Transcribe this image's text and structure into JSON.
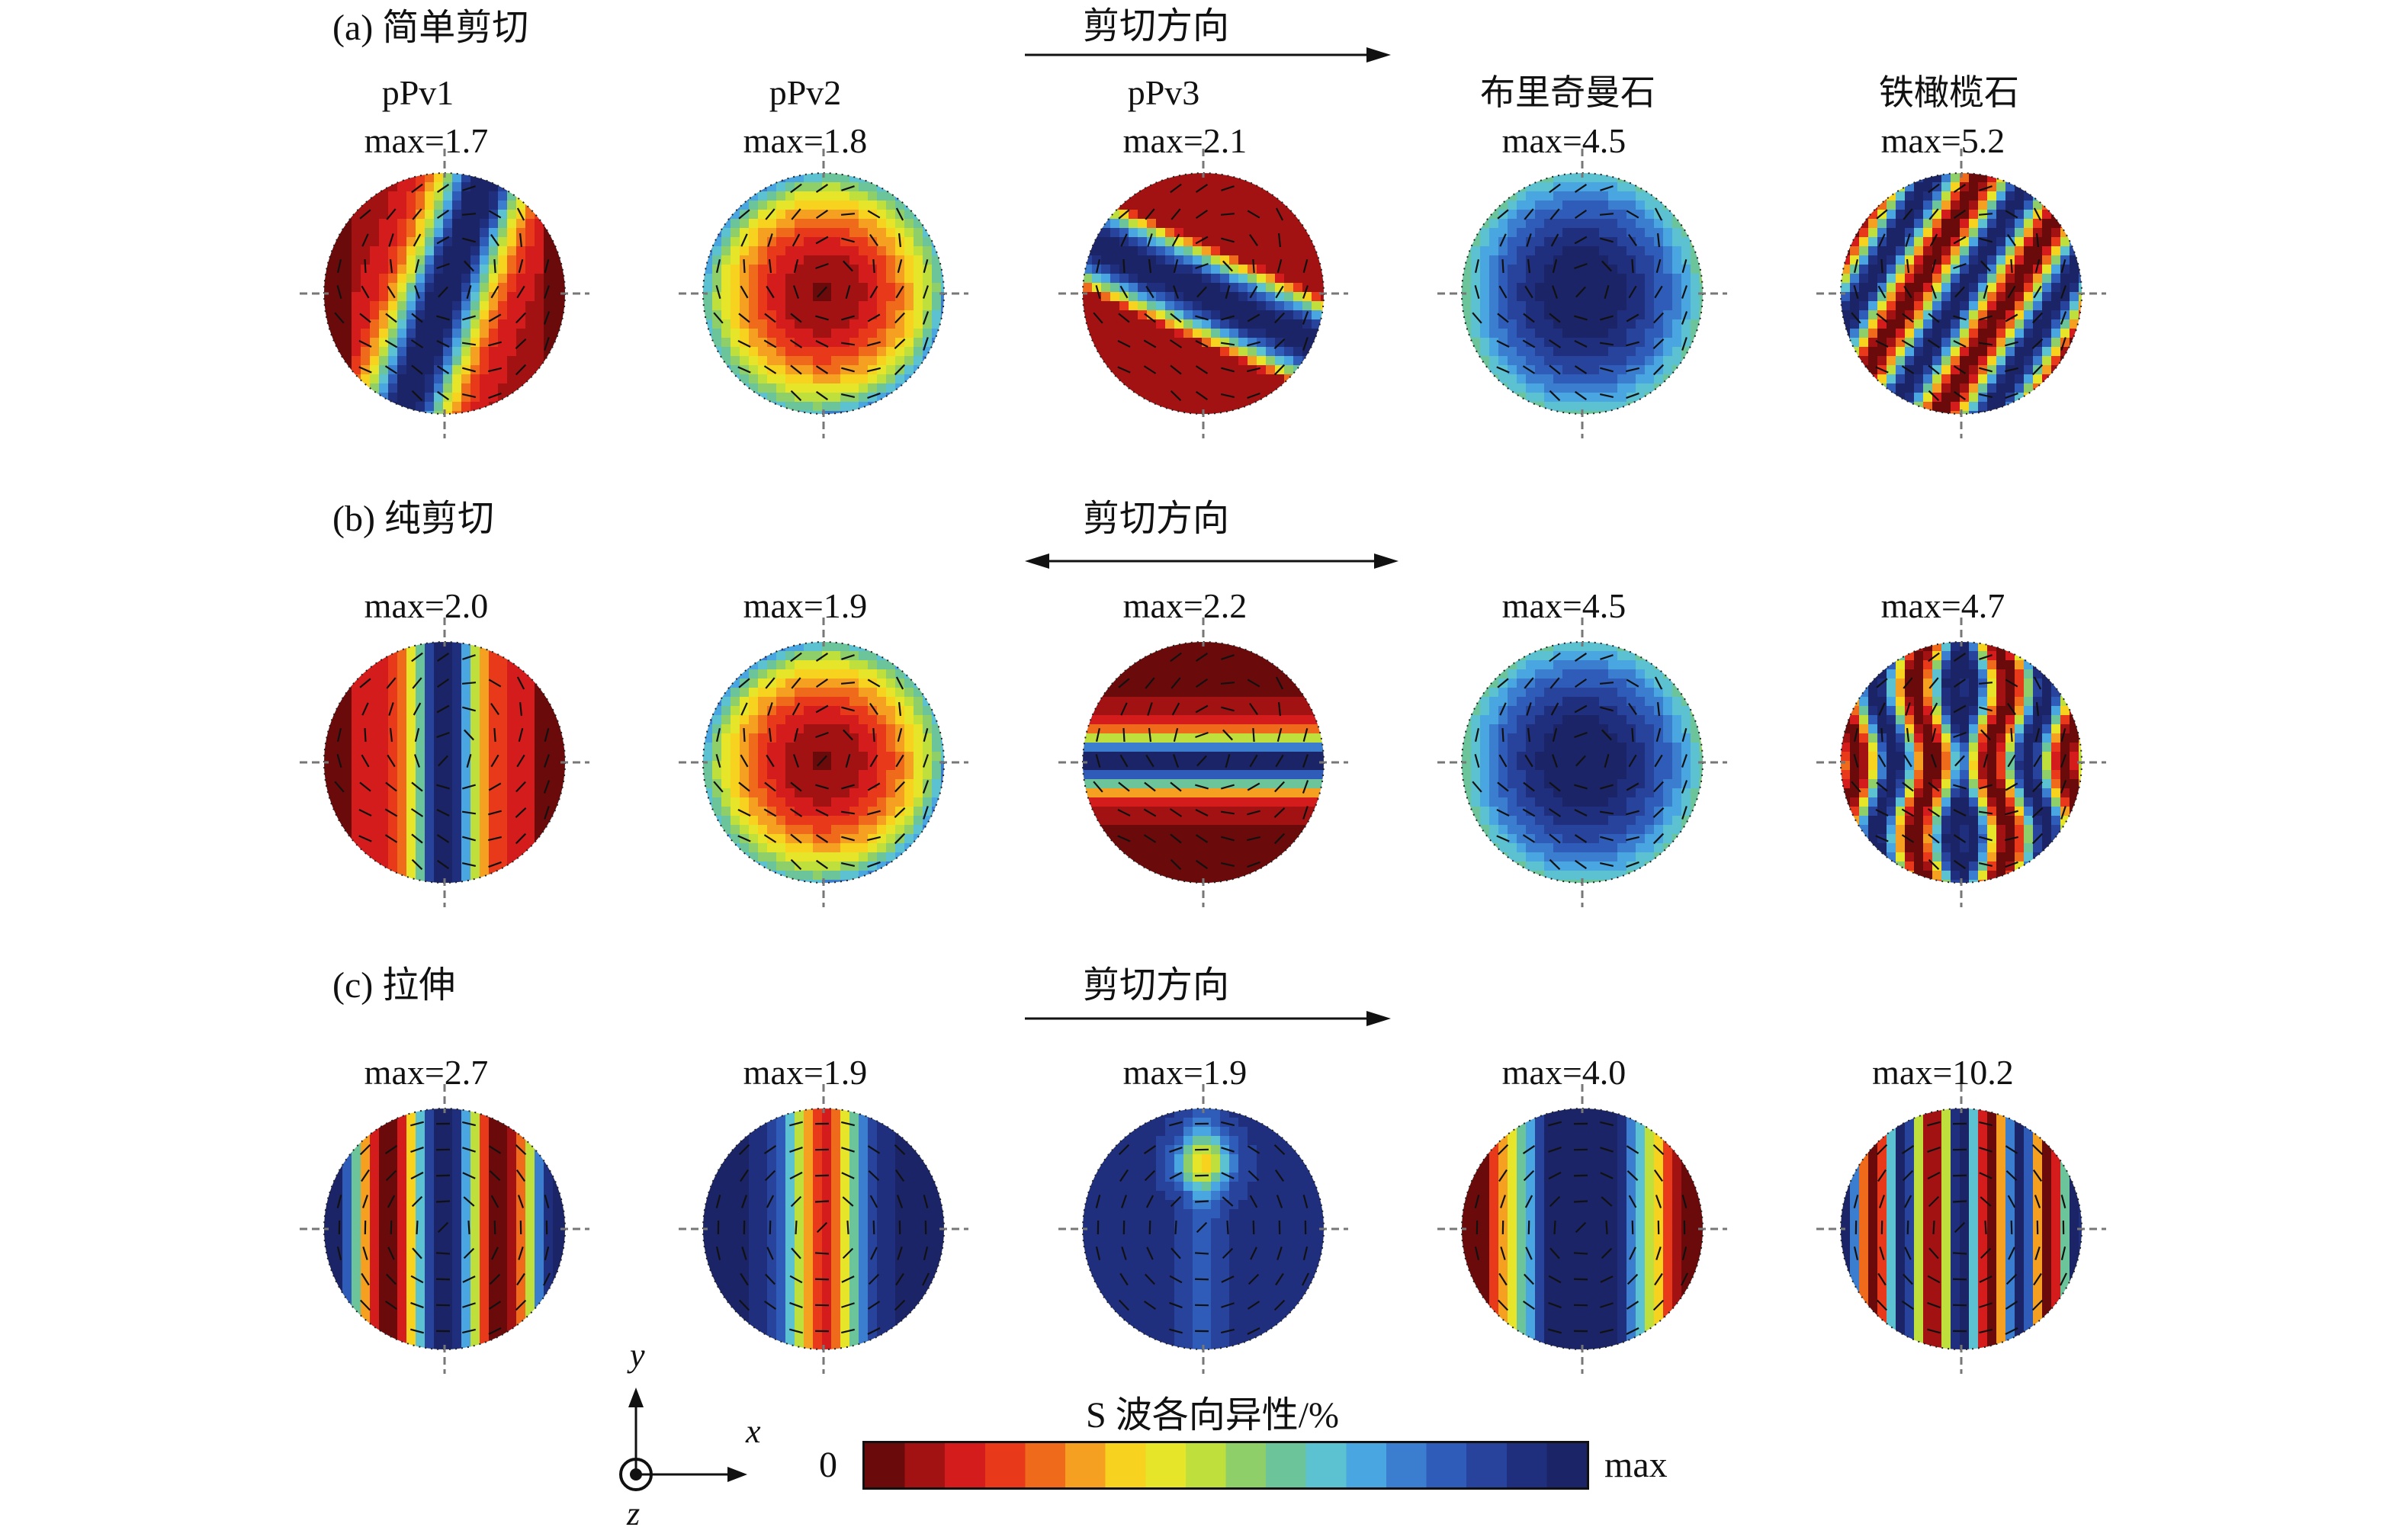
{
  "rows": [
    {
      "label": "(a) 简单剪切",
      "direction_label": "剪切方向",
      "direction_arrow": "right",
      "columns": [
        {
          "mineral": "pPv1",
          "max": "max=1.7",
          "pattern": "band-diag-left"
        },
        {
          "mineral": "pPv2",
          "max": "max=1.8",
          "pattern": "center-hot"
        },
        {
          "mineral": "pPv3",
          "max": "max=2.1",
          "pattern": "band-diag-up"
        },
        {
          "mineral": "布里奇曼石",
          "max": "max=4.5",
          "pattern": "center-cold-wide"
        },
        {
          "mineral": "铁橄榄石",
          "max": "max=5.2",
          "pattern": "stripes-diag"
        }
      ]
    },
    {
      "label": "(b) 纯剪切",
      "direction_label": "剪切方向",
      "direction_arrow": "both",
      "columns": [
        {
          "mineral": "",
          "max": "max=2.0",
          "pattern": "band-vertical"
        },
        {
          "mineral": "",
          "max": "max=1.9",
          "pattern": "center-hot"
        },
        {
          "mineral": "",
          "max": "max=2.2",
          "pattern": "band-horizontal"
        },
        {
          "mineral": "",
          "max": "max=4.5",
          "pattern": "center-cold-wide"
        },
        {
          "mineral": "",
          "max": "max=4.7",
          "pattern": "stripes-wavy"
        }
      ]
    },
    {
      "label": "(c) 拉伸",
      "direction_label": "剪切方向",
      "direction_arrow": "right",
      "columns": [
        {
          "mineral": "",
          "max": "max=2.7",
          "pattern": "stripes-vertical-wide"
        },
        {
          "mineral": "",
          "max": "max=1.9",
          "pattern": "band-hot-vertical"
        },
        {
          "mineral": "",
          "max": "max=1.9",
          "pattern": "mostly-cold"
        },
        {
          "mineral": "",
          "max": "max=4.0",
          "pattern": "band-vertical-cold"
        },
        {
          "mineral": "",
          "max": "max=10.2",
          "pattern": "stripes-vertical-thin"
        }
      ]
    }
  ],
  "colorbar": {
    "title": "S 波各向异性/%",
    "min_label": "0",
    "max_label": "max",
    "colors": [
      "#6b0a0a",
      "#a31212",
      "#d41c1c",
      "#e83a1a",
      "#f06a1c",
      "#f5a020",
      "#f7d21e",
      "#e6e52a",
      "#bfe03c",
      "#8fcf6a",
      "#6cc59a",
      "#5cc1d0",
      "#4aa6e0",
      "#3b7ed0",
      "#2f5cb8",
      "#27439c",
      "#1f2f7e",
      "#1b2466"
    ]
  },
  "axes": {
    "x": "x",
    "y": "y",
    "z": "z"
  }
}
